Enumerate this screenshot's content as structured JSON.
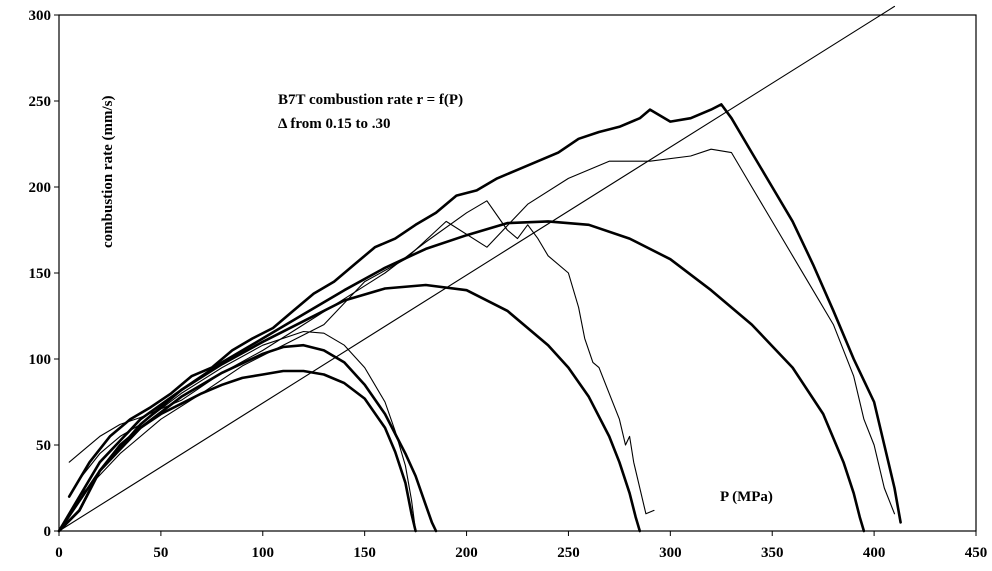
{
  "chart_data": {
    "type": "line",
    "title": "B7T combustion rate r = f(P)",
    "subtitle": "Δ  from 0.15 to .30",
    "xlabel": "P (MPa)",
    "ylabel": "combustion rate (mm/s)",
    "xlim": [
      0,
      450
    ],
    "ylim": [
      0,
      300
    ],
    "xticks": [
      0,
      50,
      100,
      150,
      200,
      250,
      300,
      350,
      400,
      450
    ],
    "yticks": [
      0,
      50,
      100,
      150,
      200,
      250,
      300
    ],
    "grid": false,
    "legend": "none",
    "series": [
      {
        "style": "thin",
        "x": [
          0,
          410
        ],
        "y": [
          0,
          305
        ]
      },
      {
        "style": "thick",
        "x": [
          0,
          10,
          20,
          30,
          40,
          50,
          60,
          70,
          80,
          90,
          100,
          110,
          120,
          130,
          140,
          150,
          160,
          165,
          170,
          173,
          175
        ],
        "y": [
          0,
          12,
          35,
          50,
          60,
          68,
          74,
          80,
          85,
          89,
          91,
          93,
          93,
          91,
          86,
          77,
          60,
          46,
          28,
          10,
          0
        ]
      },
      {
        "style": "thick",
        "x": [
          0,
          10,
          20,
          40,
          60,
          80,
          100,
          110,
          120,
          130,
          140,
          150,
          160,
          170,
          175,
          180,
          183,
          185
        ],
        "y": [
          0,
          12,
          35,
          60,
          78,
          92,
          103,
          107,
          108,
          105,
          98,
          85,
          68,
          45,
          32,
          15,
          5,
          0
        ]
      },
      {
        "style": "thin",
        "x": [
          10,
          20,
          30,
          40,
          60,
          80,
          100,
          120,
          130,
          140,
          150,
          160,
          165,
          170,
          173,
          175
        ],
        "y": [
          30,
          45,
          55,
          62,
          80,
          95,
          108,
          116,
          115,
          108,
          95,
          75,
          58,
          38,
          18,
          0
        ]
      },
      {
        "style": "thick",
        "x": [
          0,
          20,
          40,
          60,
          80,
          100,
          120,
          140,
          160,
          180,
          200,
          220,
          240,
          250,
          260,
          270,
          275,
          280,
          283,
          285
        ],
        "y": [
          0,
          35,
          62,
          82,
          97,
          110,
          122,
          134,
          141,
          143,
          140,
          128,
          108,
          95,
          78,
          55,
          40,
          22,
          8,
          0
        ]
      },
      {
        "style": "thin",
        "x": [
          5,
          10,
          20,
          30,
          40,
          60,
          80,
          100,
          120,
          140,
          160,
          180,
          200,
          210,
          220,
          225,
          230,
          235,
          240,
          250,
          255,
          258,
          262,
          265,
          270,
          275,
          278,
          280,
          282,
          285,
          288,
          292
        ],
        "y": [
          40,
          45,
          55,
          62,
          66,
          76,
          92,
          105,
          120,
          135,
          150,
          168,
          185,
          192,
          175,
          170,
          178,
          170,
          160,
          150,
          130,
          112,
          98,
          95,
          80,
          65,
          50,
          55,
          40,
          25,
          10,
          12
        ]
      },
      {
        "style": "thick",
        "x": [
          0,
          20,
          40,
          60,
          80,
          100,
          120,
          140,
          160,
          180,
          200,
          220,
          240,
          260,
          280,
          300,
          320,
          340,
          360,
          375,
          385,
          390,
          393,
          395
        ],
        "y": [
          0,
          40,
          65,
          82,
          98,
          112,
          126,
          140,
          153,
          164,
          172,
          179,
          180,
          178,
          170,
          158,
          140,
          120,
          95,
          68,
          40,
          22,
          8,
          0
        ]
      },
      {
        "style": "thin",
        "x": [
          10,
          30,
          50,
          70,
          90,
          110,
          130,
          150,
          170,
          190,
          210,
          230,
          250,
          270,
          290,
          310,
          320,
          330,
          340,
          350,
          360,
          370,
          380,
          390,
          395,
          400,
          405,
          410
        ],
        "y": [
          20,
          45,
          65,
          80,
          96,
          108,
          120,
          145,
          158,
          180,
          165,
          190,
          205,
          215,
          215,
          218,
          222,
          220,
          200,
          180,
          160,
          140,
          120,
          90,
          65,
          50,
          25,
          10
        ]
      },
      {
        "style": "thick",
        "x": [
          5,
          15,
          25,
          35,
          45,
          55,
          65,
          75,
          85,
          95,
          105,
          115,
          125,
          135,
          145,
          155,
          165,
          175,
          185,
          195,
          205,
          215,
          225,
          235,
          245,
          255,
          265,
          275,
          285,
          290,
          300,
          310,
          320,
          325,
          330,
          340,
          350,
          360,
          370,
          380,
          390,
          400,
          405,
          410,
          413
        ],
        "y": [
          20,
          40,
          55,
          65,
          72,
          80,
          90,
          95,
          105,
          112,
          118,
          128,
          138,
          145,
          155,
          165,
          170,
          178,
          185,
          195,
          198,
          205,
          210,
          215,
          220,
          228,
          232,
          235,
          240,
          245,
          238,
          240,
          245,
          248,
          240,
          220,
          200,
          180,
          155,
          128,
          100,
          75,
          50,
          25,
          5
        ]
      }
    ]
  }
}
